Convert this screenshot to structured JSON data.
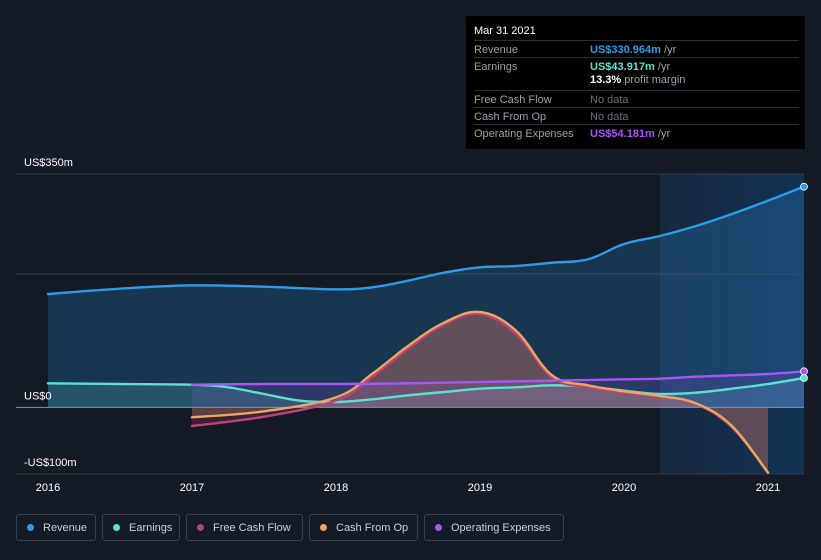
{
  "tooltip": {
    "date": "Mar 31 2021",
    "rows": [
      {
        "label": "Revenue",
        "value": "US$330.964m",
        "unit": " /yr",
        "color": "#2f9be8"
      },
      {
        "label": "Earnings",
        "value": "US$43.917m",
        "unit": " /yr",
        "color": "#5ce0d0"
      },
      {
        "label": "",
        "value": "13.3%",
        "unit": " profit margin",
        "color": "#ffffff"
      },
      {
        "label": "Free Cash Flow",
        "value": "No data",
        "unit": "",
        "color": "#6b727d"
      },
      {
        "label": "Cash From Op",
        "value": "No data",
        "unit": "",
        "color": "#6b727d"
      },
      {
        "label": "Operating Expenses",
        "value": "US$54.181m",
        "unit": " /yr",
        "color": "#a855f7"
      }
    ]
  },
  "legend": [
    {
      "label": "Revenue",
      "color": "#2f9be8"
    },
    {
      "label": "Earnings",
      "color": "#5ce0d0"
    },
    {
      "label": "Free Cash Flow",
      "color": "#c0407a"
    },
    {
      "label": "Cash From Op",
      "color": "#e8a860"
    },
    {
      "label": "Operating Expenses",
      "color": "#a855f7"
    }
  ],
  "chart_data": {
    "type": "line",
    "y_labels": [
      "US$350m",
      "US$0",
      "-US$100m"
    ],
    "ylim": [
      -100,
      350
    ],
    "xlim": [
      2016,
      2021.25
    ],
    "x_ticks": [
      2016,
      2017,
      2018,
      2019,
      2020,
      2021
    ],
    "x_tick_labels": [
      "2016",
      "2017",
      "2018",
      "2019",
      "2020",
      "2021"
    ],
    "forecast_start": 2020.25,
    "series": [
      {
        "name": "Revenue",
        "color": "#2f9be8",
        "x": [
          2016,
          2016.5,
          2017,
          2017.5,
          2018,
          2018.25,
          2018.5,
          2018.75,
          2019,
          2019.25,
          2019.5,
          2019.75,
          2020,
          2020.25,
          2020.5,
          2020.75,
          2021,
          2021.25
        ],
        "y": [
          170,
          178,
          183,
          181,
          177,
          180,
          190,
          202,
          210,
          212,
          217,
          222,
          245,
          257,
          272,
          290,
          310,
          331
        ]
      },
      {
        "name": "Earnings",
        "color": "#5ce0d0",
        "x": [
          2016,
          2016.5,
          2017,
          2017.25,
          2017.5,
          2017.75,
          2018,
          2018.25,
          2018.5,
          2018.75,
          2019,
          2019.25,
          2019.5,
          2019.75,
          2020,
          2020.25,
          2020.5,
          2020.75,
          2021,
          2021.25
        ],
        "y": [
          36,
          35,
          34,
          30,
          20,
          10,
          8,
          12,
          18,
          23,
          28,
          30,
          33,
          31,
          25,
          20,
          22,
          28,
          35,
          44
        ]
      },
      {
        "name": "Free Cash Flow",
        "color": "#c0407a",
        "x": [
          2017,
          2017.5,
          2018,
          2018.25,
          2018.5,
          2018.75,
          2019,
          2019.25,
          2019.5,
          2019.75,
          2020,
          2020.25,
          2020.5,
          2020.75,
          2021
        ],
        "y": [
          -28,
          -14,
          10,
          45,
          88,
          124,
          140,
          110,
          45,
          30,
          22,
          16,
          5,
          -30,
          -98
        ]
      },
      {
        "name": "Cash From Op",
        "color": "#e8a860",
        "x": [
          2017,
          2017.5,
          2018,
          2018.25,
          2018.5,
          2018.75,
          2019,
          2019.25,
          2019.5,
          2019.75,
          2020,
          2020.25,
          2020.5,
          2020.75,
          2021
        ],
        "y": [
          -15,
          -6,
          15,
          50,
          92,
          127,
          143,
          115,
          48,
          33,
          24,
          17,
          6,
          -28,
          -98
        ]
      },
      {
        "name": "Operating Expenses",
        "color": "#a855f7",
        "x": [
          2017,
          2017.5,
          2018,
          2018.5,
          2019,
          2019.5,
          2020,
          2020.25,
          2020.5,
          2020.75,
          2021,
          2021.25
        ],
        "y": [
          34,
          35,
          35,
          36,
          38,
          40,
          42,
          43,
          46,
          48,
          50,
          54
        ]
      }
    ]
  }
}
